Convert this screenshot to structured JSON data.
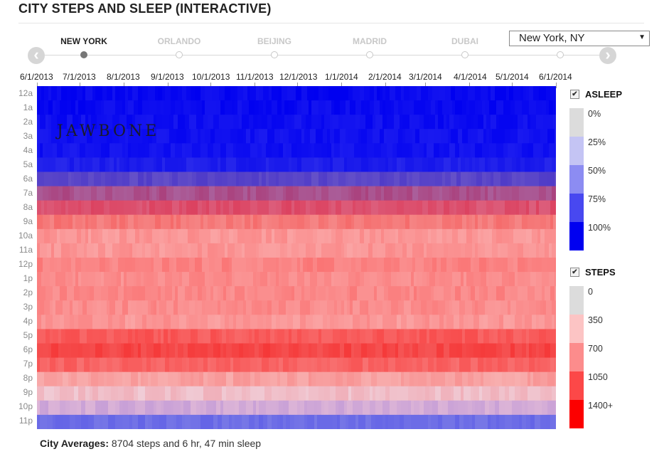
{
  "title": "CITY STEPS AND SLEEP (INTERACTIVE)",
  "nav": {
    "prev_icon": "chevron-left-icon",
    "next_icon": "chevron-right-icon",
    "prev_glyph": "‹",
    "next_glyph": "›",
    "cities": [
      {
        "label": "NEW YORK",
        "active": true
      },
      {
        "label": "ORLANDO",
        "active": false
      },
      {
        "label": "BEIJING",
        "active": false
      },
      {
        "label": "MADRID",
        "active": false
      },
      {
        "label": "DUBAI",
        "active": false
      }
    ]
  },
  "city_select": {
    "value": "New York, NY",
    "caret": "▼"
  },
  "dates": [
    "6/1/2013",
    "7/1/2013",
    "8/1/2013",
    "9/1/2013",
    "10/1/2013",
    "11/1/2013",
    "12/1/2013",
    "1/1/2014",
    "2/1/2014",
    "3/1/2014",
    "4/1/2014",
    "5/1/2014",
    "6/1/2014"
  ],
  "hours": [
    "12a",
    "1a",
    "2a",
    "3a",
    "4a",
    "5a",
    "6a",
    "7a",
    "8a",
    "9a",
    "10a",
    "11a",
    "12p",
    "1p",
    "2p",
    "3p",
    "4p",
    "5p",
    "6p",
    "7p",
    "8p",
    "9p",
    "10p",
    "11p"
  ],
  "watermark": "JAWBONE",
  "legend": {
    "asleep": {
      "checked": true,
      "check_glyph": "✔",
      "label": "ASLEEP",
      "items": [
        {
          "label": "0%",
          "color": "#dcdcdc"
        },
        {
          "label": "25%",
          "color": "#c4c4f4"
        },
        {
          "label": "50%",
          "color": "#8c8cf2"
        },
        {
          "label": "75%",
          "color": "#4848f0"
        },
        {
          "label": "100%",
          "color": "#0000f0"
        }
      ]
    },
    "steps": {
      "checked": true,
      "check_glyph": "✔",
      "label": "STEPS",
      "items": [
        {
          "label": "0",
          "color": "#dcdcdc"
        },
        {
          "label": "350",
          "color": "#fcc4c4"
        },
        {
          "label": "700",
          "color": "#fc8c8c"
        },
        {
          "label": "1050",
          "color": "#fc4848"
        },
        {
          "label": "1400+",
          "color": "#fc0000"
        }
      ]
    }
  },
  "averages": {
    "label": "City Averages:",
    "text": "8704 steps and 6 hr, 47 min sleep"
  }
}
